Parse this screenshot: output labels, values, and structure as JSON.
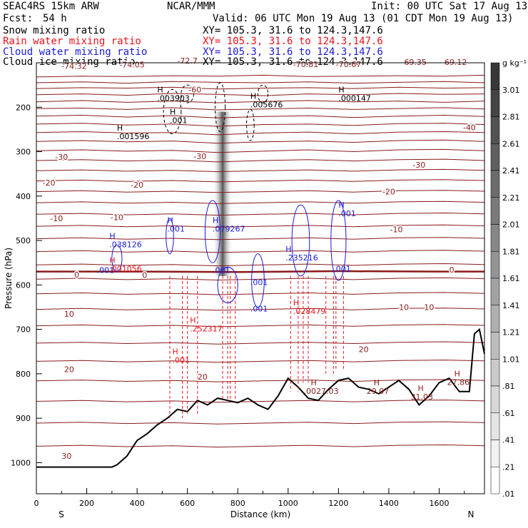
{
  "header": {
    "model": "SEAC4RS 15km ARW",
    "org": "NCAR/MMM",
    "init": "Init: 00 UTC Sat 17 Aug 13",
    "fcst_label": "Fcst:",
    "fcst_value": "54 h",
    "valid": "Valid: 06 UTC Mon 19 Aug 13 (01 CDT Mon 19 Aug 13)",
    "fields": [
      {
        "name": "Snow mixing ratio",
        "xy": "XY= 105.3, 31.6 to 124.3,147.6",
        "color": "#000000"
      },
      {
        "name": "Rain water mixing ratio",
        "xy": "XY= 105.3, 31.6 to 124.3,147.6",
        "color": "#e8141c"
      },
      {
        "name": "Cloud water mixing ratio",
        "xy": "XY= 105.3, 31.6 to 124.3,147.6",
        "color": "#1a1ad8"
      },
      {
        "name": "Cloud ice mixing ratio",
        "xy": "XY= 105.3, 31.6 to 124.3,147.6",
        "color": "#000000"
      }
    ]
  },
  "chart_data": {
    "type": "cross-section",
    "xlabel": "Distance (km)",
    "ylabel": "Pressure (hPa)",
    "xlim": [
      0,
      1780
    ],
    "ylim": [
      1070,
      100
    ],
    "x_ticks": [
      0,
      200,
      400,
      600,
      800,
      1000,
      1200,
      1400,
      1600
    ],
    "y_ticks": [
      200,
      300,
      400,
      500,
      600,
      700,
      800,
      900,
      1000
    ],
    "direction_labels": {
      "left": "S",
      "right": "N"
    },
    "colorbar": {
      "unit": "g kg⁻¹",
      "labels": [
        "3.01",
        "2.81",
        "2.61",
        "2.41",
        "2.21",
        "2.01",
        "1.81",
        "1.61",
        "1.41",
        "1.21",
        "1.01",
        ".81",
        ".61",
        ".41",
        ".21",
        ".01"
      ]
    },
    "isotherm_color": "#8b1a1a",
    "isotherms": [
      {
        "y": [
          132,
          130,
          131,
          129,
          130,
          128,
          131,
          130,
          129,
          130,
          128
        ]
      },
      {
        "y": [
          145,
          143,
          146,
          142,
          144,
          145,
          143,
          146,
          144,
          142,
          145
        ]
      },
      {
        "y": [
          158,
          156,
          157,
          155,
          159,
          157,
          156,
          158,
          155,
          157,
          156
        ]
      },
      {
        "y": [
          172,
          170,
          173,
          169,
          171,
          174,
          170,
          172,
          169,
          171,
          170
        ]
      },
      {
        "y": [
          188,
          185,
          189,
          186,
          190,
          187,
          185,
          188,
          186,
          189,
          186
        ]
      },
      {
        "y": [
          203,
          202,
          205,
          201,
          206,
          204,
          202,
          205,
          203,
          201,
          204
        ]
      },
      {
        "y": [
          220,
          218,
          222,
          219,
          224,
          221,
          219,
          223,
          220,
          218,
          221
        ]
      },
      {
        "y": [
          238,
          236,
          240,
          238,
          243,
          239,
          238,
          241,
          237,
          236,
          239
        ]
      },
      {
        "y": [
          257,
          255,
          258,
          257,
          262,
          258,
          256,
          260,
          256,
          255,
          257
        ]
      },
      {
        "y": [
          277,
          275,
          278,
          276,
          281,
          278,
          276,
          279,
          275,
          274,
          277
        ]
      },
      {
        "y": [
          298,
          296,
          299,
          297,
          302,
          299,
          296,
          300,
          296,
          295,
          298
        ]
      },
      {
        "y": [
          320,
          318,
          321,
          319,
          323,
          320,
          318,
          321,
          318,
          317,
          320
        ]
      },
      {
        "y": [
          343,
          341,
          344,
          342,
          345,
          343,
          341,
          344,
          341,
          340,
          342
        ]
      },
      {
        "y": [
          366,
          364,
          367,
          365,
          368,
          366,
          364,
          367,
          364,
          363,
          365
        ]
      },
      {
        "y": [
          390,
          388,
          391,
          389,
          392,
          390,
          388,
          391,
          388,
          387,
          389
        ]
      },
      {
        "y": [
          415,
          413,
          416,
          414,
          417,
          415,
          413,
          416,
          413,
          412,
          414
        ]
      },
      {
        "y": [
          441,
          439,
          442,
          440,
          443,
          441,
          439,
          442,
          439,
          438,
          440
        ]
      },
      {
        "y": [
          468,
          466,
          469,
          467,
          470,
          468,
          466,
          469,
          466,
          465,
          467
        ]
      },
      {
        "y": [
          496,
          494,
          497,
          495,
          498,
          496,
          494,
          497,
          494,
          493,
          495
        ]
      },
      {
        "y": [
          525,
          523,
          526,
          524,
          527,
          525,
          523,
          526,
          523,
          522,
          524
        ]
      },
      {
        "y": [
          555,
          553,
          556,
          554,
          557,
          555,
          553,
          556,
          553,
          552,
          554
        ]
      },
      {
        "y": [
          587,
          585,
          588,
          586,
          589,
          587,
          585,
          588,
          585,
          584,
          586
        ]
      },
      {
        "y": [
          620,
          618,
          621,
          619,
          622,
          620,
          618,
          621,
          618,
          617,
          619
        ]
      },
      {
        "y": [
          655,
          653,
          656,
          654,
          657,
          655,
          653,
          656,
          653,
          652,
          654
        ]
      },
      {
        "y": [
          692,
          690,
          693,
          691,
          694,
          692,
          690,
          693,
          690,
          689,
          691
        ]
      },
      {
        "y": [
          731,
          729,
          732,
          730,
          733,
          731,
          729,
          732,
          729,
          728,
          730
        ]
      },
      {
        "y": [
          772,
          770,
          773,
          771,
          774,
          772,
          770,
          773,
          770,
          769,
          771
        ]
      },
      {
        "y": [
          816,
          814,
          817,
          815,
          818,
          816,
          814,
          817,
          814,
          813,
          815
        ]
      },
      {
        "y": [
          862,
          860,
          863,
          861,
          864,
          862,
          860,
          863,
          860,
          859,
          861
        ]
      },
      {
        "y": [
          911,
          909,
          912,
          910,
          913,
          911,
          909,
          912,
          909,
          908,
          910
        ]
      },
      {
        "y": [
          963,
          961,
          964,
          962,
          965,
          963,
          961,
          964,
          961,
          960,
          962
        ]
      }
    ],
    "isotherm_x": [
      0,
      180,
      360,
      540,
      720,
      900,
      1080,
      1260,
      1440,
      1620,
      1780
    ],
    "zero_isotherm": {
      "x": [
        0,
        400,
        800,
        1200,
        1600,
        1780
      ],
      "y": [
        570,
        570,
        571,
        569,
        570,
        570
      ]
    },
    "isotherm_labels": [
      {
        "x": 150,
        "p": 107,
        "text": "-74.32"
      },
      {
        "x": 380,
        "p": 104,
        "text": "-74.05"
      },
      {
        "x": 600,
        "p": 95,
        "text": "-72.7"
      },
      {
        "x": 1070,
        "p": 103,
        "text": "-70.81"
      },
      {
        "x": 1240,
        "p": 103,
        "text": "-70.67"
      },
      {
        "x": 1500,
        "p": 98,
        "text": "-69.35"
      },
      {
        "x": 1660,
        "p": 98,
        "text": "-69.12"
      },
      {
        "x": 630,
        "p": 160,
        "text": "-60"
      },
      {
        "x": 1720,
        "p": 245,
        "text": "-40"
      },
      {
        "x": 100,
        "p": 312,
        "text": "-30"
      },
      {
        "x": 650,
        "p": 310,
        "text": "-30"
      },
      {
        "x": 1520,
        "p": 330,
        "text": "-30"
      },
      {
        "x": 50,
        "p": 370,
        "text": "-20"
      },
      {
        "x": 400,
        "p": 375,
        "text": "-20"
      },
      {
        "x": 1400,
        "p": 390,
        "text": "-20"
      },
      {
        "x": 80,
        "p": 450,
        "text": "-10"
      },
      {
        "x": 320,
        "p": 448,
        "text": "-10"
      },
      {
        "x": 1430,
        "p": 475,
        "text": "-10"
      },
      {
        "x": 160,
        "p": 577,
        "text": "0"
      },
      {
        "x": 430,
        "p": 578,
        "text": "0"
      },
      {
        "x": 1650,
        "p": 566,
        "text": "0"
      },
      {
        "x": 130,
        "p": 665,
        "text": "10"
      },
      {
        "x": 1460,
        "p": 650,
        "text": "10"
      },
      {
        "x": 1560,
        "p": 650,
        "text": "10"
      },
      {
        "x": 130,
        "p": 790,
        "text": "20"
      },
      {
        "x": 660,
        "p": 807,
        "text": "20"
      },
      {
        "x": 1300,
        "p": 745,
        "text": "20"
      },
      {
        "x": 120,
        "p": 985,
        "text": "30"
      }
    ],
    "terrain": {
      "x": [
        0,
        300,
        320,
        360,
        400,
        440,
        480,
        520,
        560,
        600,
        640,
        680,
        720,
        760,
        800,
        840,
        880,
        920,
        960,
        1000,
        1040,
        1080,
        1120,
        1160,
        1200,
        1240,
        1280,
        1320,
        1360,
        1400,
        1440,
        1480,
        1520,
        1560,
        1600,
        1640,
        1680,
        1720,
        1740,
        1760,
        1780
      ],
      "p": [
        1010,
        1010,
        1005,
        985,
        950,
        935,
        915,
        900,
        880,
        885,
        860,
        870,
        855,
        860,
        865,
        855,
        870,
        880,
        850,
        810,
        830,
        855,
        860,
        835,
        815,
        810,
        830,
        835,
        845,
        830,
        815,
        835,
        870,
        850,
        820,
        810,
        840,
        840,
        710,
        700,
        755
      ]
    },
    "terrain_h_labels": [
      {
        "x": 1090,
        "p": 845,
        "text": "H",
        "value": ".0027.03"
      },
      {
        "x": 1340,
        "p": 845,
        "text": "H",
        "value": "29.07"
      },
      {
        "x": 1515,
        "p": 858,
        "text": "H",
        "value": "31.03"
      },
      {
        "x": 1660,
        "p": 825,
        "text": "H",
        "value": "27.86"
      }
    ],
    "snow_labels": [
      {
        "x": 480,
        "p": 186,
        "value": ".003903"
      },
      {
        "x": 850,
        "p": 200,
        "value": ".005676"
      },
      {
        "x": 1200,
        "p": 186,
        "value": ".000147"
      },
      {
        "x": 320,
        "p": 272,
        "value": ".001596"
      },
      {
        "x": 530,
        "p": 236,
        "value": ".001"
      }
    ],
    "rain_labels": [
      {
        "x": 290,
        "p": 570,
        "value": ".001056"
      },
      {
        "x": 610,
        "p": 705,
        "value": ".252317"
      },
      {
        "x": 1020,
        "p": 665,
        "value": ".028479"
      },
      {
        "x": 540,
        "p": 775,
        "value": ".001"
      }
    ],
    "cloud_water_labels": [
      {
        "x": 290,
        "p": 515,
        "value": ".038126"
      },
      {
        "x": 520,
        "p": 480,
        "value": ".001"
      },
      {
        "x": 700,
        "p": 480,
        "value": ".079267"
      },
      {
        "x": 990,
        "p": 545,
        "value": ".235216"
      },
      {
        "x": 1200,
        "p": 445,
        "value": ".001"
      },
      {
        "x": 700,
        "p": 573,
        "value": ".001"
      },
      {
        "x": 850,
        "p": 600,
        "value": ".001"
      },
      {
        "x": 850,
        "p": 660,
        "value": ".001"
      },
      {
        "x": 1180,
        "p": 570,
        "value": ".001"
      },
      {
        "x": 240,
        "p": 573,
        "value": ".001"
      }
    ],
    "ice_label": "H"
  }
}
